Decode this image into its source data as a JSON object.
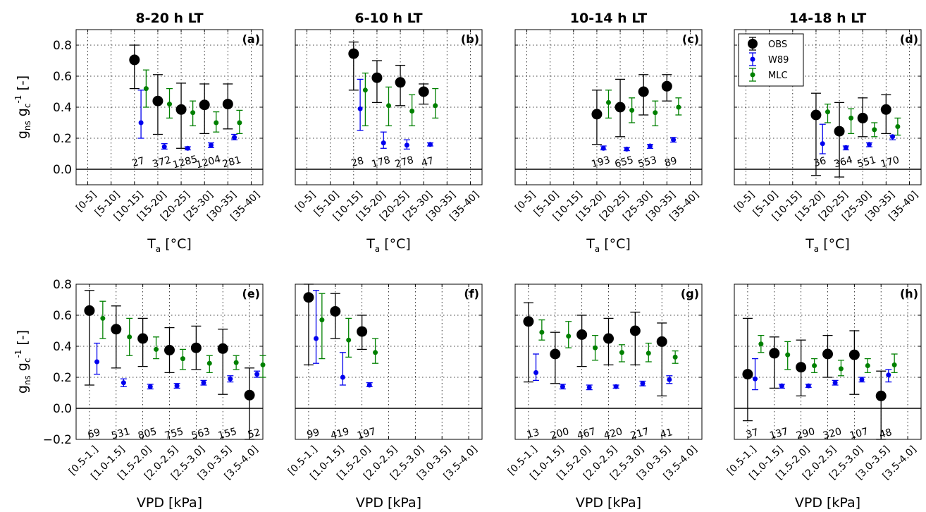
{
  "figure": {
    "ylabel_top": "g_ns g_c^-1 [-]",
    "ylabel_bottom": "g_ns g_c^-1 [-]",
    "xlabel_top": "T_a [°C]",
    "xlabel_bottom": "VPD [kPa]"
  },
  "legend": {
    "panel": "d",
    "entries": [
      {
        "name": "OBS",
        "color": "#000000"
      },
      {
        "name": "W89",
        "color": "#0000ee"
      },
      {
        "name": "MLC",
        "color": "#008000"
      }
    ]
  },
  "colors": {
    "OBS": "#000000",
    "W89": "#0000ee",
    "MLC": "#008000"
  },
  "chart_data": [
    {
      "type": "scatter",
      "panel": "(a)",
      "title": "8-20 h LT",
      "error_bars": true,
      "grid": true,
      "ylim": [
        -0.1,
        0.9
      ],
      "yticks": [
        0.0,
        0.2,
        0.4,
        0.6,
        0.8
      ],
      "categories": [
        "[0-5]",
        "[5-10]",
        "[10-15]",
        "[15-20]",
        "[20-25]",
        "[25-30]",
        "[30-35]",
        "[35-40]"
      ],
      "xlabel": "T_a [°C]",
      "ylabel": "g_ns g_c^-1 [-]",
      "counts": [
        null,
        null,
        "27",
        "372",
        "1285",
        "1204",
        "281",
        null
      ],
      "series": [
        {
          "name": "OBS",
          "mean": [
            null,
            null,
            0.705,
            0.44,
            0.385,
            0.415,
            0.42,
            null
          ],
          "low": [
            null,
            null,
            0.52,
            0.225,
            0.135,
            0.23,
            0.26,
            null
          ],
          "high": [
            null,
            null,
            0.8,
            0.61,
            0.555,
            0.55,
            0.55,
            null
          ]
        },
        {
          "name": "W89",
          "mean": [
            null,
            null,
            0.3,
            0.145,
            0.135,
            0.155,
            0.205,
            null
          ],
          "low": [
            null,
            null,
            0.2,
            0.13,
            0.125,
            0.14,
            0.19,
            null
          ],
          "high": [
            null,
            null,
            0.51,
            0.165,
            0.145,
            0.17,
            0.225,
            null
          ]
        },
        {
          "name": "MLC",
          "mean": [
            null,
            null,
            0.52,
            0.42,
            0.365,
            0.3,
            0.3,
            null
          ],
          "low": [
            null,
            null,
            0.4,
            0.33,
            0.28,
            0.24,
            0.23,
            null
          ],
          "high": [
            null,
            null,
            0.64,
            0.52,
            0.44,
            0.37,
            0.38,
            null
          ]
        }
      ]
    },
    {
      "type": "scatter",
      "panel": "(b)",
      "title": "6-10 h LT",
      "error_bars": true,
      "grid": true,
      "ylim": [
        -0.1,
        0.9
      ],
      "yticks": [
        0.0,
        0.2,
        0.4,
        0.6,
        0.8
      ],
      "categories": [
        "[0-5]",
        "[5-10]",
        "[10-15]",
        "[15-20]",
        "[20-25]",
        "[25-30]",
        "[30-35]",
        "[35-40]"
      ],
      "xlabel": "T_a [°C]",
      "counts": [
        null,
        null,
        "28",
        "178",
        "278",
        "47",
        null,
        null
      ],
      "series": [
        {
          "name": "OBS",
          "mean": [
            null,
            null,
            0.745,
            0.59,
            0.56,
            0.5,
            null,
            null
          ],
          "low": [
            null,
            null,
            0.51,
            0.43,
            0.41,
            0.42,
            null,
            null
          ],
          "high": [
            null,
            null,
            0.82,
            0.7,
            0.67,
            0.55,
            null,
            null
          ]
        },
        {
          "name": "W89",
          "mean": [
            null,
            null,
            0.39,
            0.17,
            0.155,
            0.16,
            null,
            null
          ],
          "low": [
            null,
            null,
            0.25,
            0.135,
            0.13,
            0.15,
            null,
            null
          ],
          "high": [
            null,
            null,
            0.58,
            0.24,
            0.19,
            0.17,
            null,
            null
          ]
        },
        {
          "name": "MLC",
          "mean": [
            null,
            null,
            0.51,
            0.41,
            0.375,
            0.41,
            null,
            null
          ],
          "low": [
            null,
            null,
            0.28,
            0.28,
            0.28,
            0.33,
            null,
            null
          ],
          "high": [
            null,
            null,
            0.62,
            0.53,
            0.48,
            0.52,
            null,
            null
          ]
        }
      ]
    },
    {
      "type": "scatter",
      "panel": "(c)",
      "title": "10-14 h LT",
      "error_bars": true,
      "grid": true,
      "ylim": [
        -0.1,
        0.9
      ],
      "yticks": [
        0.0,
        0.2,
        0.4,
        0.6,
        0.8
      ],
      "categories": [
        "[0-5]",
        "[5-10]",
        "[10-15]",
        "[15-20]",
        "[20-25]",
        "[25-30]",
        "[30-35]",
        "[35-40]"
      ],
      "xlabel": "T_a [°C]",
      "counts": [
        null,
        null,
        null,
        "193",
        "655",
        "553",
        "89",
        null
      ],
      "series": [
        {
          "name": "OBS",
          "mean": [
            null,
            null,
            null,
            0.355,
            0.4,
            0.5,
            0.535,
            null
          ],
          "low": [
            null,
            null,
            null,
            0.16,
            0.21,
            0.35,
            0.44,
            null
          ],
          "high": [
            null,
            null,
            null,
            0.51,
            0.58,
            0.61,
            0.61,
            null
          ]
        },
        {
          "name": "W89",
          "mean": [
            null,
            null,
            null,
            0.135,
            0.13,
            0.15,
            0.19,
            null
          ],
          "low": [
            null,
            null,
            null,
            0.125,
            0.12,
            0.135,
            0.175,
            null
          ],
          "high": [
            null,
            null,
            null,
            0.15,
            0.14,
            0.16,
            0.205,
            null
          ]
        },
        {
          "name": "MLC",
          "mean": [
            null,
            null,
            null,
            0.43,
            0.38,
            0.365,
            0.4,
            null
          ],
          "low": [
            null,
            null,
            null,
            0.33,
            0.3,
            0.28,
            0.35,
            null
          ],
          "high": [
            null,
            null,
            null,
            0.51,
            0.46,
            0.44,
            0.46,
            null
          ]
        }
      ]
    },
    {
      "type": "scatter",
      "panel": "(d)",
      "title": "14-18 h LT",
      "error_bars": true,
      "grid": true,
      "ylim": [
        -0.1,
        0.9
      ],
      "yticks": [
        0.0,
        0.2,
        0.4,
        0.6,
        0.8
      ],
      "categories": [
        "[0-5]",
        "[5-10]",
        "[10-15]",
        "[15-20]",
        "[20-25]",
        "[25-30]",
        "[30-35]",
        "[35-40]"
      ],
      "xlabel": "T_a [°C]",
      "legend": "top-left",
      "counts": [
        null,
        null,
        null,
        "36",
        "364",
        "551",
        "170",
        null
      ],
      "series": [
        {
          "name": "OBS",
          "mean": [
            null,
            null,
            null,
            0.35,
            0.245,
            0.33,
            0.385,
            null
          ],
          "low": [
            null,
            null,
            null,
            -0.04,
            -0.05,
            0.21,
            0.23,
            null
          ],
          "high": [
            null,
            null,
            null,
            0.49,
            0.43,
            0.46,
            0.48,
            null
          ]
        },
        {
          "name": "W89",
          "mean": [
            null,
            null,
            null,
            0.165,
            0.14,
            0.16,
            0.21,
            null
          ],
          "low": [
            null,
            null,
            null,
            0.1,
            0.125,
            0.145,
            0.19,
            null
          ],
          "high": [
            null,
            null,
            null,
            0.29,
            0.15,
            0.17,
            0.22,
            null
          ]
        },
        {
          "name": "MLC",
          "mean": [
            null,
            null,
            null,
            0.37,
            0.33,
            0.255,
            0.275,
            null
          ],
          "low": [
            null,
            null,
            null,
            0.3,
            0.23,
            0.21,
            0.22,
            null
          ],
          "high": [
            null,
            null,
            null,
            0.42,
            0.39,
            0.3,
            0.33,
            null
          ]
        }
      ]
    },
    {
      "type": "scatter",
      "panel": "(e)",
      "error_bars": true,
      "grid": true,
      "ylim": [
        -0.2,
        0.8
      ],
      "yticks": [
        -0.2,
        0.0,
        0.2,
        0.4,
        0.6,
        0.8
      ],
      "categories": [
        "[0.5-1.]",
        "[1.0-1.5]",
        "[1.5-2.0]",
        "[2.0-2.5]",
        "[2.5-3.0]",
        "[3.0-3.5]",
        "[3.5-4.0]"
      ],
      "xlabel": "VPD [kPa]",
      "ylabel": "g_ns g_c^-1 [-]",
      "counts": [
        "69",
        "531",
        "805",
        "755",
        "563",
        "155",
        "52"
      ],
      "series": [
        {
          "name": "OBS",
          "mean": [
            0.63,
            0.51,
            0.45,
            0.375,
            0.39,
            0.385,
            0.085
          ],
          "low": [
            0.15,
            0.26,
            0.27,
            0.23,
            0.25,
            0.09,
            -0.2
          ],
          "high": [
            0.76,
            0.66,
            0.58,
            0.52,
            0.53,
            0.51,
            0.26
          ]
        },
        {
          "name": "W89",
          "mean": [
            0.3,
            0.165,
            0.14,
            0.145,
            0.165,
            0.19,
            0.22
          ],
          "low": [
            0.22,
            0.14,
            0.125,
            0.13,
            0.15,
            0.17,
            0.2
          ],
          "high": [
            0.42,
            0.19,
            0.155,
            0.16,
            0.18,
            0.21,
            0.24
          ]
        },
        {
          "name": "MLC",
          "mean": [
            0.58,
            0.46,
            0.38,
            0.32,
            0.29,
            0.295,
            0.28
          ],
          "low": [
            0.45,
            0.34,
            0.32,
            0.25,
            0.23,
            0.25,
            0.2
          ],
          "high": [
            0.69,
            0.58,
            0.46,
            0.38,
            0.34,
            0.34,
            0.34
          ]
        }
      ]
    },
    {
      "type": "scatter",
      "panel": "(f)",
      "error_bars": true,
      "grid": true,
      "ylim": [
        -0.2,
        0.8
      ],
      "yticks": [
        -0.2,
        0.0,
        0.2,
        0.4,
        0.6,
        0.8
      ],
      "categories": [
        "[0.5-1.]",
        "[1.0-1.5]",
        "[1.5-2.0]",
        "[2.0-2.5]",
        "[2.5-3.0]",
        "[3.0-3.5]",
        "[3.5-4.0]"
      ],
      "xlabel": "VPD [kPa]",
      "counts": [
        "99",
        "419",
        "197",
        null,
        null,
        null,
        null
      ],
      "series": [
        {
          "name": "OBS",
          "mean": [
            0.715,
            0.625,
            0.495,
            null,
            null,
            null,
            null
          ],
          "low": [
            0.28,
            0.45,
            0.38,
            null,
            null,
            null,
            null
          ],
          "high": [
            0.8,
            0.74,
            0.6,
            null,
            null,
            null,
            null
          ]
        },
        {
          "name": "W89",
          "mean": [
            0.45,
            0.2,
            0.15,
            null,
            null,
            null,
            null
          ],
          "low": [
            0.29,
            0.15,
            0.14,
            null,
            null,
            null,
            null
          ],
          "high": [
            0.76,
            0.36,
            0.165,
            null,
            null,
            null,
            null
          ]
        },
        {
          "name": "MLC",
          "mean": [
            0.57,
            0.44,
            0.36,
            null,
            null,
            null,
            null
          ],
          "low": [
            0.32,
            0.33,
            0.29,
            null,
            null,
            null,
            null
          ],
          "high": [
            0.74,
            0.58,
            0.45,
            null,
            null,
            null,
            null
          ]
        }
      ]
    },
    {
      "type": "scatter",
      "panel": "(g)",
      "error_bars": true,
      "grid": true,
      "ylim": [
        -0.2,
        0.8
      ],
      "yticks": [
        -0.2,
        0.0,
        0.2,
        0.4,
        0.6,
        0.8
      ],
      "categories": [
        "[0.5-1.]",
        "[1.0-1.5]",
        "[1.5-2.0]",
        "[2.0-2.5]",
        "[2.5-3.0]",
        "[3.0-3.5]",
        "[3.5-4.0]"
      ],
      "xlabel": "VPD [kPa]",
      "counts": [
        "13",
        "200",
        "467",
        "420",
        "217",
        "41",
        null
      ],
      "series": [
        {
          "name": "OBS",
          "mean": [
            0.56,
            0.35,
            0.475,
            0.45,
            0.5,
            0.43,
            null
          ],
          "low": [
            0.17,
            0.16,
            0.27,
            0.28,
            0.28,
            0.08,
            null
          ],
          "high": [
            0.68,
            0.49,
            0.6,
            0.58,
            0.62,
            0.55,
            null
          ]
        },
        {
          "name": "W89",
          "mean": [
            0.23,
            0.14,
            0.135,
            0.14,
            0.16,
            0.185,
            null
          ],
          "low": [
            0.18,
            0.125,
            0.12,
            0.13,
            0.145,
            0.16,
            null
          ],
          "high": [
            0.35,
            0.155,
            0.15,
            0.15,
            0.175,
            0.21,
            null
          ]
        },
        {
          "name": "MLC",
          "mean": [
            0.49,
            0.465,
            0.39,
            0.36,
            0.355,
            0.33,
            null
          ],
          "low": [
            0.44,
            0.39,
            0.31,
            0.3,
            0.3,
            0.29,
            null
          ],
          "high": [
            0.57,
            0.56,
            0.47,
            0.41,
            0.42,
            0.37,
            null
          ]
        }
      ]
    },
    {
      "type": "scatter",
      "panel": "(h)",
      "error_bars": true,
      "grid": true,
      "ylim": [
        -0.2,
        0.8
      ],
      "yticks": [
        -0.2,
        0.0,
        0.2,
        0.4,
        0.6,
        0.8
      ],
      "categories": [
        "[0.5-1.]",
        "[1.0-1.5]",
        "[1.5-2.0]",
        "[2.0-2.5]",
        "[2.5-3.0]",
        "[3.0-3.5]",
        "[3.5-4.0]"
      ],
      "xlabel": "VPD [kPa]",
      "counts": [
        "37",
        "137",
        "290",
        "320",
        "107",
        "48",
        null
      ],
      "series": [
        {
          "name": "OBS",
          "mean": [
            0.22,
            0.355,
            0.265,
            0.35,
            0.345,
            0.08,
            null
          ],
          "low": [
            -0.08,
            0.13,
            0.08,
            0.2,
            0.09,
            -0.2,
            null
          ],
          "high": [
            0.58,
            0.46,
            0.44,
            0.47,
            0.5,
            0.24,
            null
          ]
        },
        {
          "name": "W89",
          "mean": [
            0.19,
            0.145,
            0.145,
            0.165,
            0.185,
            0.215,
            null
          ],
          "low": [
            0.12,
            0.13,
            0.135,
            0.15,
            0.17,
            0.17,
            null
          ],
          "high": [
            0.32,
            0.155,
            0.155,
            0.18,
            0.2,
            0.25,
            null
          ]
        },
        {
          "name": "MLC",
          "mean": [
            0.415,
            0.345,
            0.275,
            0.255,
            0.275,
            0.28,
            null
          ],
          "low": [
            0.36,
            0.25,
            0.23,
            0.21,
            0.23,
            0.23,
            null
          ],
          "high": [
            0.47,
            0.43,
            0.32,
            0.31,
            0.32,
            0.35,
            null
          ]
        }
      ]
    }
  ]
}
